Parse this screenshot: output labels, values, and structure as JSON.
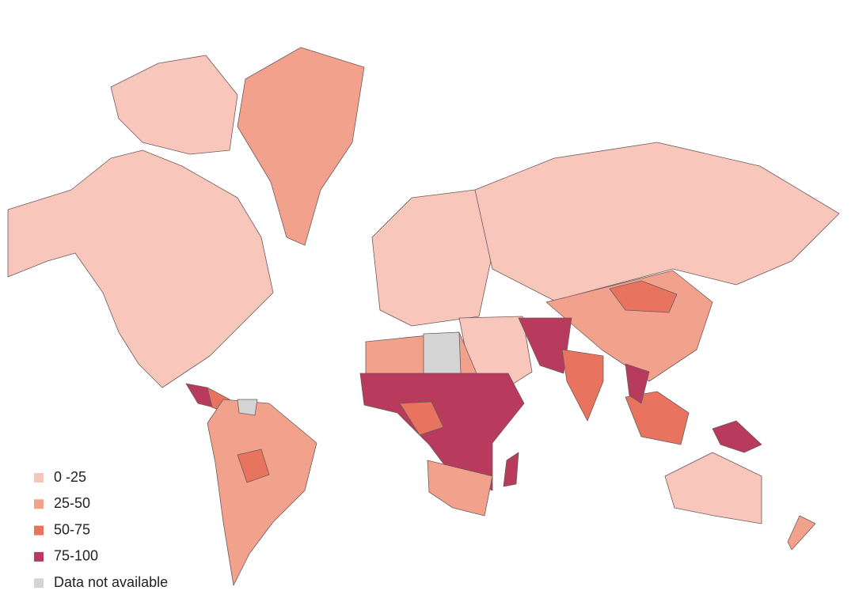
{
  "legend": {
    "items": [
      {
        "label": "0 -25",
        "color": "#f9c6bb"
      },
      {
        "label": "25-50",
        "color": "#f2a28c"
      },
      {
        "label": "50-75",
        "color": "#e8735f"
      },
      {
        "label": "75-100",
        "color": "#b83a5c"
      },
      {
        "label": "Data not available",
        "color": "#d4d4d4"
      }
    ]
  }
}
